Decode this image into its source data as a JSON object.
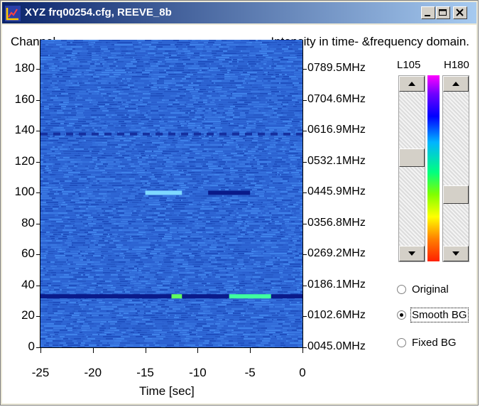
{
  "window": {
    "title": "XYZ  frq00254.cfg, REEVE_8b",
    "minimize_label": "_",
    "restore_label": "□",
    "close_label": "✕"
  },
  "header": {
    "left_label": "Channel",
    "right_label": "Intensity in time- &frequency domain."
  },
  "chart_data": {
    "type": "heatmap",
    "xlabel": "Time [sec]",
    "ylabel": "Channel",
    "x_ticks": [
      "-25",
      "-20",
      "-15",
      "-10",
      "-5",
      "0"
    ],
    "xlim": [
      -25,
      0
    ],
    "y_ticks": [
      "0",
      "20",
      "40",
      "60",
      "80",
      "100",
      "120",
      "140",
      "160",
      "180"
    ],
    "ylim": [
      0,
      199
    ],
    "freq_ticks": [
      "0045.0MHz",
      "0102.6MHz",
      "0186.1MHz",
      "0269.2MHz",
      "0356.8MHz",
      "0445.9MHz",
      "0532.1MHz",
      "0616.9MHz",
      "0704.6MHz",
      "0789.5MHz"
    ],
    "base_color": "#2f68d6",
    "features": [
      {
        "channel": 33,
        "t_start": -25,
        "t_end": 0,
        "kind": "dark band"
      },
      {
        "channel": 33,
        "t_start": -7,
        "t_end": -3,
        "kind": "bright green-cyan segment"
      },
      {
        "channel": 33,
        "t_start": -12.5,
        "t_end": -11.5,
        "kind": "bright green segment"
      },
      {
        "channel": 100,
        "t_start": -15,
        "t_end": -11.5,
        "kind": "light cyan segment"
      },
      {
        "channel": 100,
        "t_start": -9,
        "t_end": -5,
        "kind": "dark band"
      },
      {
        "channel": 138,
        "t_start": -25,
        "t_end": 0,
        "kind": "dashed dark band"
      }
    ]
  },
  "controls": {
    "low_label": "L105",
    "high_label": "H180",
    "low_value": 105,
    "high_value": 180,
    "radio_options": [
      {
        "label": "Original",
        "selected": false
      },
      {
        "label": "Smooth BG",
        "selected": true
      },
      {
        "label": "Fixed BG",
        "selected": false
      }
    ]
  }
}
